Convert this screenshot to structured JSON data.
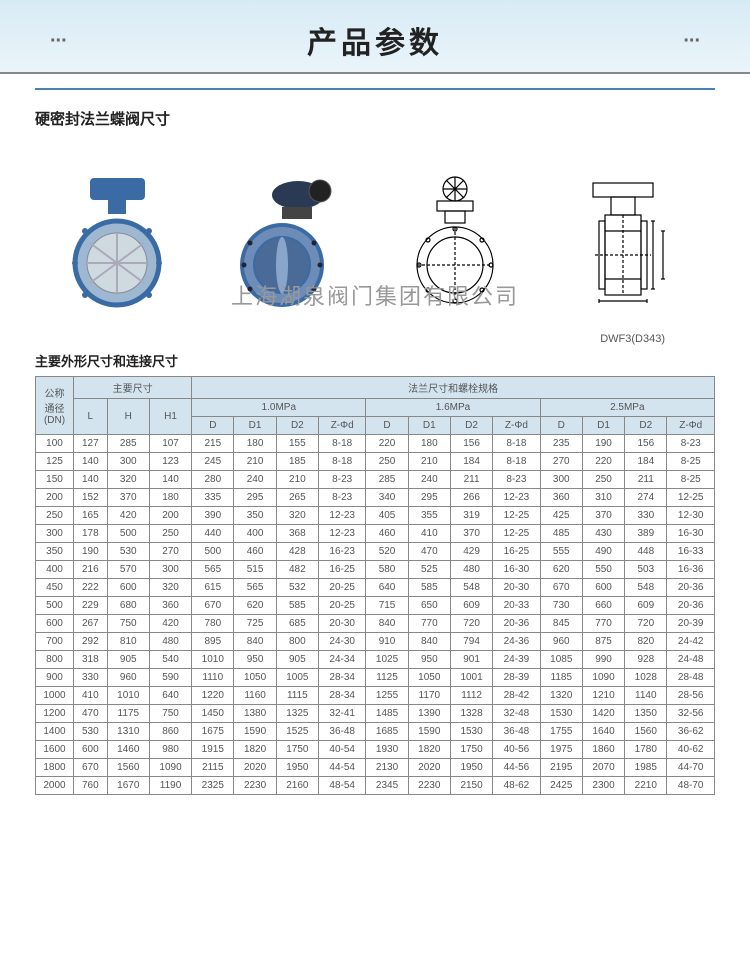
{
  "header": {
    "title": "产品参数",
    "dots": "..."
  },
  "section_title": "硬密封法兰蝶阀尺寸",
  "watermark": "上海湖泉阀门集团有限公司",
  "model_label": "DWF3(D343)",
  "subtitle": "主要外形尺寸和连接尺寸",
  "colors": {
    "header_bg_top": "#d8ebf5",
    "header_bg_bot": "#eaf4fa",
    "rule": "#4a7fb8",
    "th_bg": "#d4e4ef",
    "border": "#888888",
    "text": "#555555",
    "valve_blue": "#3a6ba5",
    "valve_light": "#9db8d0"
  },
  "table": {
    "group_labels": {
      "dn": "公称\n通径\n(DN)",
      "main": "主要尺寸",
      "flange": "法兰尺寸和螺栓规格",
      "p10": "1.0MPa",
      "p16": "1.6MPa",
      "p25": "2.5MPa"
    },
    "cols_main": [
      "L",
      "H",
      "H1"
    ],
    "cols_p": [
      "D",
      "D1",
      "D2",
      "Z-Φd"
    ],
    "rows": [
      [
        "100",
        "127",
        "285",
        "107",
        "215",
        "180",
        "155",
        "8-18",
        "220",
        "180",
        "156",
        "8-18",
        "235",
        "190",
        "156",
        "8-23"
      ],
      [
        "125",
        "140",
        "300",
        "123",
        "245",
        "210",
        "185",
        "8-18",
        "250",
        "210",
        "184",
        "8-18",
        "270",
        "220",
        "184",
        "8-25"
      ],
      [
        "150",
        "140",
        "320",
        "140",
        "280",
        "240",
        "210",
        "8-23",
        "285",
        "240",
        "211",
        "8-23",
        "300",
        "250",
        "211",
        "8-25"
      ],
      [
        "200",
        "152",
        "370",
        "180",
        "335",
        "295",
        "265",
        "8-23",
        "340",
        "295",
        "266",
        "12-23",
        "360",
        "310",
        "274",
        "12-25"
      ],
      [
        "250",
        "165",
        "420",
        "200",
        "390",
        "350",
        "320",
        "12-23",
        "405",
        "355",
        "319",
        "12-25",
        "425",
        "370",
        "330",
        "12-30"
      ],
      [
        "300",
        "178",
        "500",
        "250",
        "440",
        "400",
        "368",
        "12-23",
        "460",
        "410",
        "370",
        "12-25",
        "485",
        "430",
        "389",
        "16-30"
      ],
      [
        "350",
        "190",
        "530",
        "270",
        "500",
        "460",
        "428",
        "16-23",
        "520",
        "470",
        "429",
        "16-25",
        "555",
        "490",
        "448",
        "16-33"
      ],
      [
        "400",
        "216",
        "570",
        "300",
        "565",
        "515",
        "482",
        "16-25",
        "580",
        "525",
        "480",
        "16-30",
        "620",
        "550",
        "503",
        "16-36"
      ],
      [
        "450",
        "222",
        "600",
        "320",
        "615",
        "565",
        "532",
        "20-25",
        "640",
        "585",
        "548",
        "20-30",
        "670",
        "600",
        "548",
        "20-36"
      ],
      [
        "500",
        "229",
        "680",
        "360",
        "670",
        "620",
        "585",
        "20-25",
        "715",
        "650",
        "609",
        "20-33",
        "730",
        "660",
        "609",
        "20-36"
      ],
      [
        "600",
        "267",
        "750",
        "420",
        "780",
        "725",
        "685",
        "20-30",
        "840",
        "770",
        "720",
        "20-36",
        "845",
        "770",
        "720",
        "20-39"
      ],
      [
        "700",
        "292",
        "810",
        "480",
        "895",
        "840",
        "800",
        "24-30",
        "910",
        "840",
        "794",
        "24-36",
        "960",
        "875",
        "820",
        "24-42"
      ],
      [
        "800",
        "318",
        "905",
        "540",
        "1010",
        "950",
        "905",
        "24-34",
        "1025",
        "950",
        "901",
        "24-39",
        "1085",
        "990",
        "928",
        "24-48"
      ],
      [
        "900",
        "330",
        "960",
        "590",
        "1110",
        "1050",
        "1005",
        "28-34",
        "1125",
        "1050",
        "1001",
        "28-39",
        "1185",
        "1090",
        "1028",
        "28-48"
      ],
      [
        "1000",
        "410",
        "1010",
        "640",
        "1220",
        "1160",
        "1115",
        "28-34",
        "1255",
        "1170",
        "1112",
        "28-42",
        "1320",
        "1210",
        "1140",
        "28-56"
      ],
      [
        "1200",
        "470",
        "1175",
        "750",
        "1450",
        "1380",
        "1325",
        "32-41",
        "1485",
        "1390",
        "1328",
        "32-48",
        "1530",
        "1420",
        "1350",
        "32-56"
      ],
      [
        "1400",
        "530",
        "1310",
        "860",
        "1675",
        "1590",
        "1525",
        "36-48",
        "1685",
        "1590",
        "1530",
        "36-48",
        "1755",
        "1640",
        "1560",
        "36-62"
      ],
      [
        "1600",
        "600",
        "1460",
        "980",
        "1915",
        "1820",
        "1750",
        "40-54",
        "1930",
        "1820",
        "1750",
        "40-56",
        "1975",
        "1860",
        "1780",
        "40-62"
      ],
      [
        "1800",
        "670",
        "1560",
        "1090",
        "2115",
        "2020",
        "1950",
        "44-54",
        "2130",
        "2020",
        "1950",
        "44-56",
        "2195",
        "2070",
        "1985",
        "44-70"
      ],
      [
        "2000",
        "760",
        "1670",
        "1190",
        "2325",
        "2230",
        "2160",
        "48-54",
        "2345",
        "2230",
        "2150",
        "48-62",
        "2425",
        "2300",
        "2210",
        "48-70"
      ]
    ]
  }
}
